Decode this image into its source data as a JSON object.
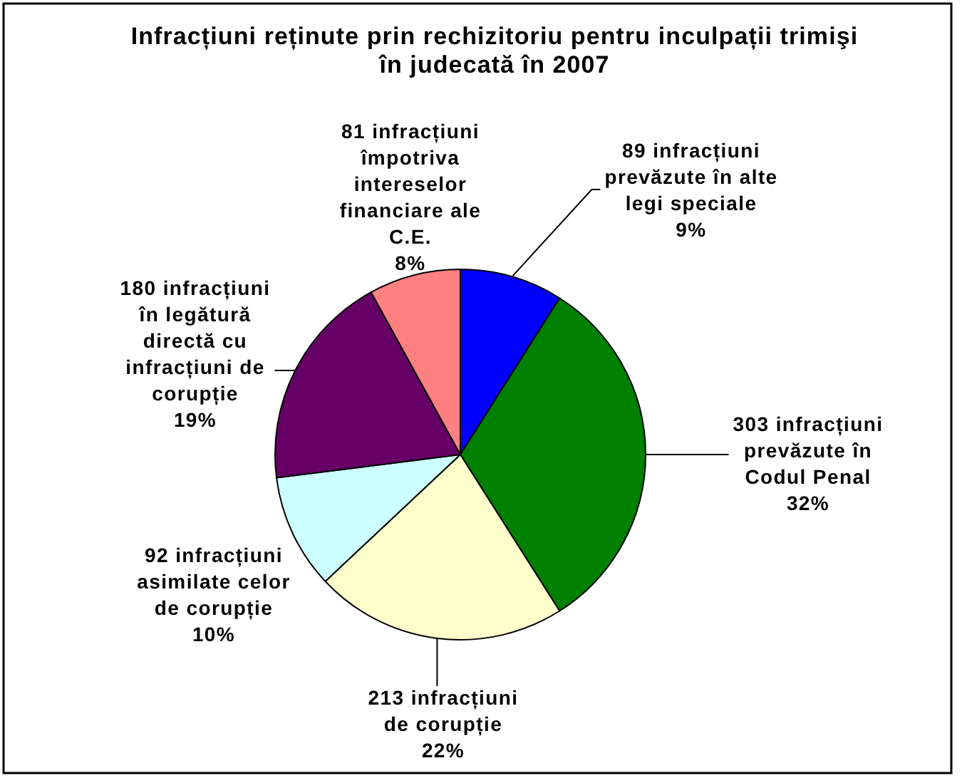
{
  "chart_data": {
    "type": "pie",
    "title": "Infracțiuni reținute prin rechizitoriu pentru inculpații trimişi în judecată în 2007",
    "categories": [
      "89 infracțiuni prevăzute în alte legi speciale",
      "303 infracțiuni prevăzute în Codul Penal",
      "213 infracțiuni de corupție",
      "92 infracțiuni asimilate celor de corupție",
      "180 infracțiuni în legătură directă cu infracțiuni de corupție",
      "81 infracțiuni împotriva intereselor financiare ale C.E."
    ],
    "values": [
      9,
      32,
      22,
      10,
      19,
      8
    ],
    "colors": [
      "#0000ff",
      "#008000",
      "#ffffcc",
      "#ccffff",
      "#660066",
      "#ff8080"
    ],
    "value_labels": [
      "9%",
      "32%",
      "22%",
      "10%",
      "19%",
      "8%"
    ]
  }
}
